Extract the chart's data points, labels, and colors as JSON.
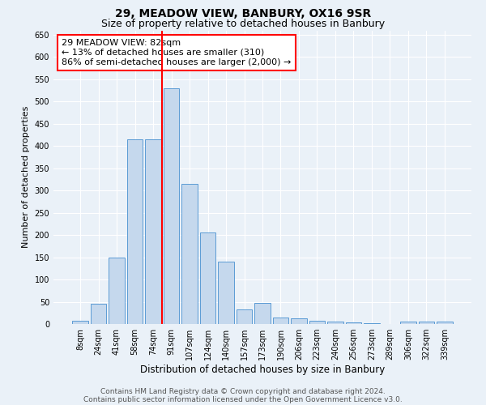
{
  "title": "29, MEADOW VIEW, BANBURY, OX16 9SR",
  "subtitle": "Size of property relative to detached houses in Banbury",
  "xlabel": "Distribution of detached houses by size in Banbury",
  "ylabel": "Number of detached properties",
  "categories": [
    "8sqm",
    "24sqm",
    "41sqm",
    "58sqm",
    "74sqm",
    "91sqm",
    "107sqm",
    "124sqm",
    "140sqm",
    "157sqm",
    "173sqm",
    "190sqm",
    "206sqm",
    "223sqm",
    "240sqm",
    "256sqm",
    "273sqm",
    "289sqm",
    "306sqm",
    "322sqm",
    "339sqm"
  ],
  "values": [
    8,
    45,
    150,
    415,
    415,
    530,
    315,
    205,
    140,
    33,
    48,
    15,
    13,
    8,
    5,
    3,
    2,
    0,
    5,
    5,
    6
  ],
  "bar_color": "#c5d8ed",
  "bar_edge_color": "#5b9bd5",
  "vline_color": "red",
  "annotation_text": "29 MEADOW VIEW: 82sqm\n← 13% of detached houses are smaller (310)\n86% of semi-detached houses are larger (2,000) →",
  "annotation_box_color": "white",
  "annotation_edge_color": "red",
  "ylim": [
    0,
    660
  ],
  "yticks": [
    0,
    50,
    100,
    150,
    200,
    250,
    300,
    350,
    400,
    450,
    500,
    550,
    600,
    650
  ],
  "footer_line1": "Contains HM Land Registry data © Crown copyright and database right 2024.",
  "footer_line2": "Contains public sector information licensed under the Open Government Licence v3.0.",
  "background_color": "#eaf1f8",
  "plot_bg_color": "#eaf1f8",
  "grid_color": "white",
  "title_fontsize": 10,
  "subtitle_fontsize": 9,
  "xlabel_fontsize": 8.5,
  "ylabel_fontsize": 8,
  "tick_fontsize": 7,
  "footer_fontsize": 6.5,
  "vline_x_index": 4.5
}
